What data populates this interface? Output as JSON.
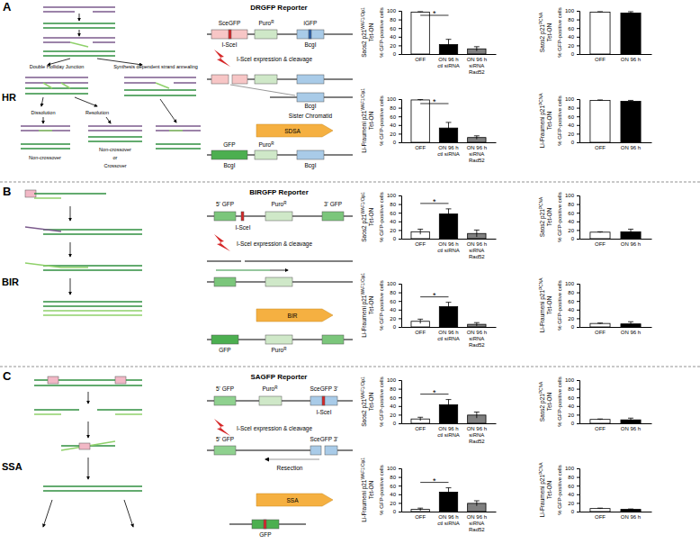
{
  "chart_data": [
    {
      "type": "bar",
      "title": [
        "Saos2 p21",
        "WAF1/Cip1",
        "Tet-ON"
      ],
      "ylabel": "% GFP-positive cells",
      "categories": [
        "OFF",
        "ON 96 h ctl siRNA",
        "ON 96 h siRNA Rad52"
      ],
      "values": [
        97,
        22,
        12
      ],
      "errors": [
        1,
        12,
        5
      ],
      "colors": [
        "#ffffff",
        "#000000",
        "#808080"
      ],
      "ylim": [
        0,
        100
      ],
      "yticks": [
        0,
        20,
        40,
        60,
        80,
        100
      ],
      "annotations": [
        {
          "text": "*",
          "from": 0,
          "to": 1
        }
      ]
    },
    {
      "type": "bar",
      "title": [
        "Saos2 p21",
        "PCNA",
        "Tet-ON"
      ],
      "ylabel": "% GFP-positive cells",
      "categories": [
        "OFF",
        "ON 96 h"
      ],
      "values": [
        97,
        95
      ],
      "errors": [
        1,
        3
      ],
      "colors": [
        "#ffffff",
        "#000000"
      ],
      "ylim": [
        0,
        100
      ],
      "yticks": [
        0,
        20,
        40,
        60,
        80,
        100
      ]
    },
    {
      "type": "bar",
      "title": [
        "Li-Fraumeni p21",
        "WAF1/Cip1",
        "Tet-ON"
      ],
      "ylabel": "% GFP-positive cells",
      "categories": [
        "OFF",
        "ON 96 h ctl siRNA",
        "ON 96 h siRNA Rad52"
      ],
      "values": [
        98,
        33,
        11
      ],
      "errors": [
        1,
        13,
        4
      ],
      "colors": [
        "#ffffff",
        "#000000",
        "#808080"
      ],
      "ylim": [
        0,
        100
      ],
      "yticks": [
        0,
        20,
        40,
        60,
        80,
        100
      ],
      "annotations": [
        {
          "text": "*",
          "from": 0,
          "to": 1
        }
      ]
    },
    {
      "type": "bar",
      "title": [
        "Li-Fraumeni p21",
        "PCNA",
        "Tet-ON"
      ],
      "ylabel": "% GFP-positive cells",
      "categories": [
        "OFF",
        "ON 96 h"
      ],
      "values": [
        97,
        95
      ],
      "errors": [
        1,
        2
      ],
      "colors": [
        "#ffffff",
        "#000000"
      ],
      "ylim": [
        0,
        100
      ],
      "yticks": [
        0,
        20,
        40,
        60,
        80,
        100
      ]
    },
    {
      "type": "bar",
      "title": [
        "Saos2 p21",
        "WAF1/Cip1",
        "Tet-ON"
      ],
      "ylabel": "% GFP-positive cells",
      "categories": [
        "OFF",
        "ON 96 h ctl siRNA",
        "ON 96 h siRNA Rad52"
      ],
      "values": [
        16,
        57,
        12
      ],
      "errors": [
        6,
        12,
        8
      ],
      "colors": [
        "#ffffff",
        "#000000",
        "#808080"
      ],
      "ylim": [
        0,
        100
      ],
      "yticks": [
        0,
        20,
        40,
        60,
        80,
        100
      ],
      "annotations": [
        {
          "text": "*",
          "from": 0,
          "to": 1
        }
      ]
    },
    {
      "type": "bar",
      "title": [
        "Saos2 p21",
        "PCNA",
        "Tet-ON"
      ],
      "ylabel": "% GFP-positive cells",
      "categories": [
        "OFF",
        "ON 96 h"
      ],
      "values": [
        15,
        16
      ],
      "errors": [
        1,
        6
      ],
      "colors": [
        "#ffffff",
        "#000000"
      ],
      "ylim": [
        0,
        100
      ],
      "yticks": [
        0,
        20,
        40,
        60,
        80,
        100
      ]
    },
    {
      "type": "bar",
      "title": [
        "Li-Fraumeni p21",
        "WAF1/Cip1",
        "Tet-ON"
      ],
      "ylabel": "% GFP-positive cells",
      "categories": [
        "OFF",
        "ON 96 h ctl siRNA",
        "ON 96 h siRNA Rad52"
      ],
      "values": [
        13,
        47,
        6
      ],
      "errors": [
        5,
        10,
        4
      ],
      "colors": [
        "#ffffff",
        "#000000",
        "#808080"
      ],
      "ylim": [
        0,
        100
      ],
      "yticks": [
        0,
        20,
        40,
        60,
        80,
        100
      ],
      "annotations": [
        {
          "text": "*",
          "from": 0,
          "to": 1
        }
      ]
    },
    {
      "type": "bar",
      "title": [
        "Li-Fraumeni p21",
        "PCNA",
        "Tet-ON"
      ],
      "ylabel": "% GFP-positive cells",
      "categories": [
        "OFF",
        "ON 96 h"
      ],
      "values": [
        8,
        7
      ],
      "errors": [
        1,
        5
      ],
      "colors": [
        "#ffffff",
        "#000000"
      ],
      "ylim": [
        0,
        100
      ],
      "yticks": [
        0,
        20,
        40,
        60,
        80,
        100
      ]
    },
    {
      "type": "bar",
      "title": [
        "Saos2 p21",
        "WAF1/Cip1",
        "Tet-ON"
      ],
      "ylabel": "% GFP-positive cells",
      "categories": [
        "OFF",
        "ON 96 h ctl siRNA",
        "ON 96 h siRNA Rad52"
      ],
      "values": [
        10,
        43,
        19
      ],
      "errors": [
        4,
        12,
        7
      ],
      "colors": [
        "#ffffff",
        "#000000",
        "#808080"
      ],
      "ylim": [
        0,
        100
      ],
      "yticks": [
        0,
        20,
        40,
        60,
        80,
        100
      ],
      "annotations": [
        {
          "text": "*",
          "from": 0,
          "to": 1
        }
      ]
    },
    {
      "type": "bar",
      "title": [
        "Saos2 p21",
        "PCNA",
        "Tet-ON"
      ],
      "ylabel": "% GFP-positive cells",
      "categories": [
        "OFF",
        "ON 96 h"
      ],
      "values": [
        9,
        8
      ],
      "errors": [
        1,
        4
      ],
      "colors": [
        "#ffffff",
        "#000000"
      ],
      "ylim": [
        0,
        100
      ],
      "yticks": [
        0,
        20,
        40,
        60,
        80,
        100
      ]
    },
    {
      "type": "bar",
      "title": [
        "Li-Fraumeni p21",
        "WAF1/Cip1",
        "Tet-ON"
      ],
      "ylabel": "% GFP-positive cells",
      "categories": [
        "OFF",
        "ON 96 h ctl siRNA",
        "ON 96 h siRNA Rad52"
      ],
      "values": [
        5,
        45,
        19
      ],
      "errors": [
        3,
        10,
        6
      ],
      "colors": [
        "#ffffff",
        "#000000",
        "#808080"
      ],
      "ylim": [
        0,
        100
      ],
      "yticks": [
        0,
        20,
        40,
        60,
        80,
        100
      ],
      "annotations": [
        {
          "text": "*",
          "from": 0,
          "to": 1
        }
      ]
    },
    {
      "type": "bar",
      "title": [
        "Li-Fraumeni p21",
        "PCNA",
        "Tet-ON"
      ],
      "ylabel": "% GFP-positive cells",
      "categories": [
        "OFF",
        "ON 96 h"
      ],
      "values": [
        7,
        5
      ],
      "errors": [
        1,
        1
      ],
      "colors": [
        "#ffffff",
        "#000000"
      ],
      "ylim": [
        0,
        100
      ],
      "yticks": [
        0,
        20,
        40,
        60,
        80,
        100
      ]
    }
  ],
  "diagrams": [
    {
      "panel": "A",
      "mechanism": "HR",
      "reporter": "DRGFP Reporter",
      "mechanism_labels": [
        "Double Holliday Junction",
        "Synthesis dependent strand annealing",
        "Dissolution",
        "Resolution",
        "Non-crossover",
        "Non-crossover",
        "or",
        "Crossover"
      ],
      "reporter_labels": [
        "SceGFP",
        "I-SceI",
        {
          "text": "Puro",
          "sup": "R"
        },
        "iGFP",
        "BcgI",
        "I-SceI expression & cleavage",
        "BcgI",
        "Sister Chromatid",
        "SDSA",
        "GFP",
        {
          "text": "Puro",
          "sup": "R"
        },
        "BcgI",
        "BcgI"
      ]
    },
    {
      "panel": "B",
      "mechanism": "BIR",
      "reporter": "BIRGFP Reporter",
      "mechanism_labels": [],
      "reporter_labels": [
        "5' GFP",
        "3' GFP",
        "I-SceI",
        {
          "text": "Puro",
          "sup": "R"
        },
        "I-SceI expression & cleavage",
        "BIR",
        "GFP",
        {
          "text": "Puro",
          "sup": "R"
        }
      ]
    },
    {
      "panel": "C",
      "mechanism": "SSA",
      "reporter": "SAGFP Reporter",
      "mechanism_labels": [],
      "reporter_labels": [
        "5' GFP",
        {
          "text": "Puro",
          "sup": "R"
        },
        "SceGFP 3'",
        "I-SceI",
        "I-SceI expression & cleavage",
        "5' GFP",
        "SceGFP 3'",
        "Resection",
        "SSA",
        "GFP"
      ]
    }
  ]
}
